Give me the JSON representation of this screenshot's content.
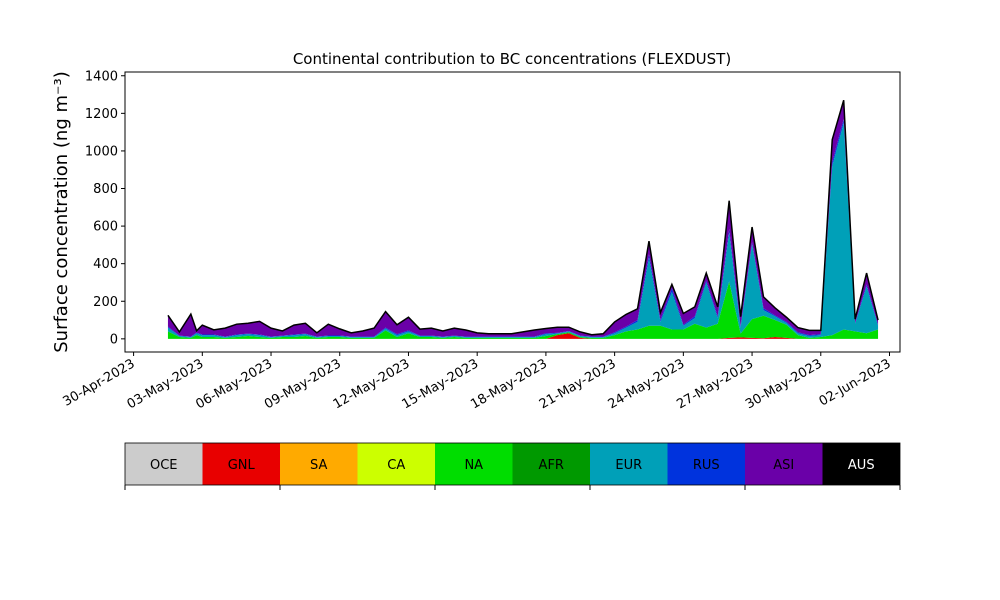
{
  "chart_data": {
    "type": "area",
    "title": "Continental contribution to BC concentrations (FLEXDUST)",
    "ylabel": "Surface concentration (ng m⁻³)",
    "xlabel": "",
    "ylim": [
      -70,
      1420
    ],
    "xlim": [
      "2023-04-29T15:00",
      "2023-06-02T11:00"
    ],
    "grid": false,
    "yticks": [
      0,
      200,
      400,
      600,
      800,
      1000,
      1200,
      1400
    ],
    "xticks": [
      {
        "date": "2023-04-30",
        "label": "30-Apr-2023"
      },
      {
        "date": "2023-05-03",
        "label": "03-May-2023"
      },
      {
        "date": "2023-05-06",
        "label": "06-May-2023"
      },
      {
        "date": "2023-05-09",
        "label": "09-May-2023"
      },
      {
        "date": "2023-05-12",
        "label": "12-May-2023"
      },
      {
        "date": "2023-05-15",
        "label": "15-May-2023"
      },
      {
        "date": "2023-05-18",
        "label": "18-May-2023"
      },
      {
        "date": "2023-05-21",
        "label": "21-May-2023"
      },
      {
        "date": "2023-05-24",
        "label": "24-May-2023"
      },
      {
        "date": "2023-05-27",
        "label": "27-May-2023"
      },
      {
        "date": "2023-05-30",
        "label": "30-May-2023"
      },
      {
        "date": "2023-06-02",
        "label": "02-Jun-2023"
      }
    ],
    "x": [
      "2023-05-01T12:00",
      "2023-05-02",
      "2023-05-02T12:00",
      "2023-05-02T18:00",
      "2023-05-03",
      "2023-05-03T12:00",
      "2023-05-04",
      "2023-05-04T12:00",
      "2023-05-05",
      "2023-05-05T12:00",
      "2023-05-06",
      "2023-05-06T12:00",
      "2023-05-07",
      "2023-05-07T12:00",
      "2023-05-08",
      "2023-05-08T12:00",
      "2023-05-09",
      "2023-05-09T12:00",
      "2023-05-10",
      "2023-05-10T12:00",
      "2023-05-11",
      "2023-05-11T12:00",
      "2023-05-12",
      "2023-05-12T12:00",
      "2023-05-13",
      "2023-05-13T12:00",
      "2023-05-14",
      "2023-05-14T12:00",
      "2023-05-15",
      "2023-05-15T12:00",
      "2023-05-16",
      "2023-05-16T12:00",
      "2023-05-17",
      "2023-05-17T12:00",
      "2023-05-18",
      "2023-05-18T12:00",
      "2023-05-19",
      "2023-05-19T12:00",
      "2023-05-20",
      "2023-05-20T12:00",
      "2023-05-21",
      "2023-05-21T12:00",
      "2023-05-22",
      "2023-05-22T12:00",
      "2023-05-23",
      "2023-05-23T12:00",
      "2023-05-24",
      "2023-05-24T12:00",
      "2023-05-25",
      "2023-05-25T12:00",
      "2023-05-26",
      "2023-05-26T12:00",
      "2023-05-27",
      "2023-05-27T12:00",
      "2023-05-28",
      "2023-05-28T12:00",
      "2023-05-29",
      "2023-05-29T12:00",
      "2023-05-30",
      "2023-05-30T12:00",
      "2023-05-31",
      "2023-05-31T12:00",
      "2023-06-01",
      "2023-06-01T12:00"
    ],
    "series": [
      {
        "name": "OCE",
        "color": "#cccccc",
        "values": [
          0,
          0,
          0,
          0,
          0,
          0,
          0,
          0,
          0,
          0,
          0,
          0,
          0,
          0,
          0,
          0,
          0,
          0,
          0,
          0,
          0,
          0,
          0,
          0,
          0,
          0,
          0,
          0,
          0,
          0,
          0,
          0,
          0,
          0,
          0,
          0,
          0,
          0,
          0,
          0,
          0,
          0,
          0,
          0,
          0,
          0,
          0,
          0,
          0,
          0,
          0,
          0,
          0,
          0,
          0,
          0,
          0,
          0,
          0,
          0,
          0,
          0,
          0,
          0
        ]
      },
      {
        "name": "GNL",
        "color": "#e80000",
        "values": [
          0,
          0,
          0,
          0,
          0,
          0,
          0,
          0,
          0,
          0,
          0,
          0,
          0,
          0,
          0,
          0,
          0,
          0,
          0,
          0,
          0,
          0,
          0,
          0,
          0,
          0,
          0,
          0,
          0,
          0,
          0,
          0,
          0,
          0,
          0,
          20,
          30,
          5,
          0,
          0,
          0,
          0,
          0,
          0,
          0,
          0,
          0,
          0,
          0,
          0,
          5,
          8,
          5,
          3,
          10,
          5,
          0,
          0,
          0,
          0,
          0,
          0,
          0,
          0
        ]
      },
      {
        "name": "SA",
        "color": "#ffaa00",
        "values": [
          0,
          0,
          0,
          0,
          0,
          0,
          0,
          0,
          0,
          0,
          0,
          0,
          0,
          0,
          0,
          0,
          0,
          0,
          0,
          0,
          0,
          0,
          0,
          0,
          0,
          0,
          0,
          0,
          0,
          0,
          0,
          0,
          0,
          0,
          0,
          0,
          0,
          0,
          0,
          0,
          0,
          0,
          0,
          0,
          0,
          0,
          0,
          0,
          0,
          0,
          0,
          0,
          0,
          0,
          0,
          0,
          0,
          0,
          0,
          0,
          0,
          0,
          0,
          0
        ]
      },
      {
        "name": "CA",
        "color": "#ccff00",
        "values": [
          0,
          0,
          0,
          0,
          0,
          0,
          0,
          0,
          0,
          0,
          0,
          0,
          0,
          0,
          0,
          0,
          0,
          0,
          0,
          0,
          0,
          0,
          0,
          0,
          0,
          0,
          0,
          0,
          0,
          0,
          0,
          0,
          0,
          0,
          0,
          0,
          0,
          0,
          0,
          0,
          0,
          0,
          0,
          0,
          0,
          0,
          0,
          0,
          0,
          0,
          0,
          0,
          0,
          0,
          0,
          0,
          0,
          0,
          0,
          0,
          0,
          0,
          0,
          0
        ]
      },
      {
        "name": "NA",
        "color": "#00dd00",
        "values": [
          40,
          10,
          5,
          20,
          10,
          10,
          5,
          10,
          15,
          10,
          5,
          10,
          10,
          15,
          5,
          10,
          10,
          5,
          5,
          5,
          45,
          10,
          30,
          10,
          10,
          5,
          10,
          5,
          5,
          5,
          5,
          5,
          5,
          5,
          15,
          5,
          5,
          5,
          5,
          5,
          20,
          40,
          50,
          70,
          70,
          50,
          50,
          80,
          60,
          80,
          300,
          20,
          100,
          120,
          90,
          70,
          20,
          5,
          10,
          20,
          50,
          40,
          30,
          50
        ]
      },
      {
        "name": "AFR",
        "color": "#009900",
        "values": [
          0,
          0,
          0,
          0,
          0,
          0,
          0,
          0,
          0,
          0,
          0,
          0,
          0,
          0,
          0,
          0,
          0,
          0,
          0,
          0,
          0,
          0,
          0,
          0,
          0,
          0,
          0,
          0,
          0,
          0,
          0,
          0,
          0,
          0,
          0,
          0,
          0,
          0,
          0,
          0,
          0,
          0,
          0,
          0,
          0,
          0,
          0,
          0,
          0,
          0,
          0,
          0,
          0,
          0,
          0,
          0,
          0,
          0,
          0,
          0,
          0,
          0,
          0,
          0
        ]
      },
      {
        "name": "EUR",
        "color": "#00a0b8",
        "values": [
          20,
          5,
          5,
          10,
          10,
          10,
          5,
          10,
          10,
          10,
          5,
          5,
          10,
          10,
          5,
          5,
          5,
          5,
          5,
          5,
          10,
          10,
          10,
          5,
          5,
          5,
          5,
          5,
          5,
          5,
          5,
          5,
          5,
          5,
          10,
          5,
          5,
          5,
          5,
          5,
          10,
          20,
          40,
          360,
          20,
          200,
          20,
          30,
          240,
          30,
          260,
          30,
          400,
          30,
          20,
          10,
          10,
          10,
          10,
          900,
          1100,
          40,
          250,
          20
        ]
      },
      {
        "name": "RUS",
        "color": "#0033dd",
        "values": [
          5,
          2,
          2,
          3,
          3,
          3,
          2,
          3,
          3,
          3,
          2,
          2,
          3,
          3,
          2,
          3,
          3,
          2,
          2,
          2,
          5,
          5,
          5,
          2,
          2,
          2,
          2,
          2,
          2,
          2,
          2,
          2,
          2,
          2,
          5,
          2,
          2,
          2,
          2,
          2,
          5,
          5,
          10,
          20,
          10,
          20,
          5,
          10,
          10,
          10,
          20,
          10,
          10,
          10,
          5,
          5,
          5,
          5,
          5,
          20,
          20,
          5,
          10,
          5
        ]
      },
      {
        "name": "ASI",
        "color": "#6a00a8",
        "values": [
          60,
          20,
          120,
          10,
          50,
          25,
          45,
          55,
          55,
          70,
          45,
          25,
          50,
          55,
          20,
          60,
          35,
          20,
          30,
          45,
          85,
          50,
          70,
          35,
          40,
          30,
          40,
          35,
          20,
          15,
          15,
          15,
          25,
          35,
          25,
          30,
          20,
          20,
          10,
          15,
          55,
          65,
          60,
          70,
          40,
          20,
          60,
          50,
          40,
          50,
          150,
          50,
          80,
          60,
          40,
          25,
          25,
          25,
          20,
          120,
          100,
          20,
          60,
          25
        ]
      },
      {
        "name": "AUS",
        "color": "#000000",
        "values": [
          0,
          0,
          0,
          0,
          0,
          0,
          0,
          0,
          0,
          0,
          0,
          0,
          0,
          0,
          0,
          0,
          0,
          0,
          0,
          0,
          0,
          0,
          0,
          0,
          0,
          0,
          0,
          0,
          0,
          0,
          0,
          0,
          0,
          0,
          0,
          0,
          0,
          0,
          0,
          0,
          0,
          0,
          0,
          0,
          0,
          0,
          0,
          0,
          0,
          0,
          0,
          0,
          0,
          0,
          0,
          0,
          0,
          0,
          0,
          0,
          0,
          0,
          0,
          0
        ]
      }
    ]
  }
}
